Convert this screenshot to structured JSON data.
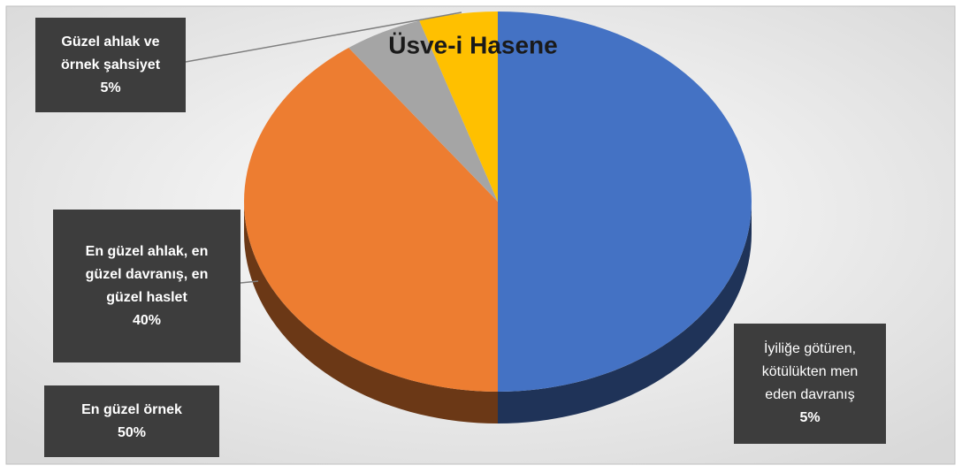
{
  "chart_data": {
    "type": "pie",
    "title": "Üsve-i Hasene",
    "categories": [
      "En güzel örnek",
      "En güzel ahlak, en güzel davranış, en güzel haslet",
      "İyiliğe götüren, kötülükten men eden davranış",
      "Güzel ahlak ve örnek şahsiyet"
    ],
    "values": [
      50,
      40,
      5,
      5
    ],
    "value_labels": [
      "50%",
      "40%",
      "5%",
      "5%"
    ],
    "colors": [
      "#4472c4",
      "#ed7d31",
      "#a5a5a5",
      "#ffc000"
    ]
  }
}
